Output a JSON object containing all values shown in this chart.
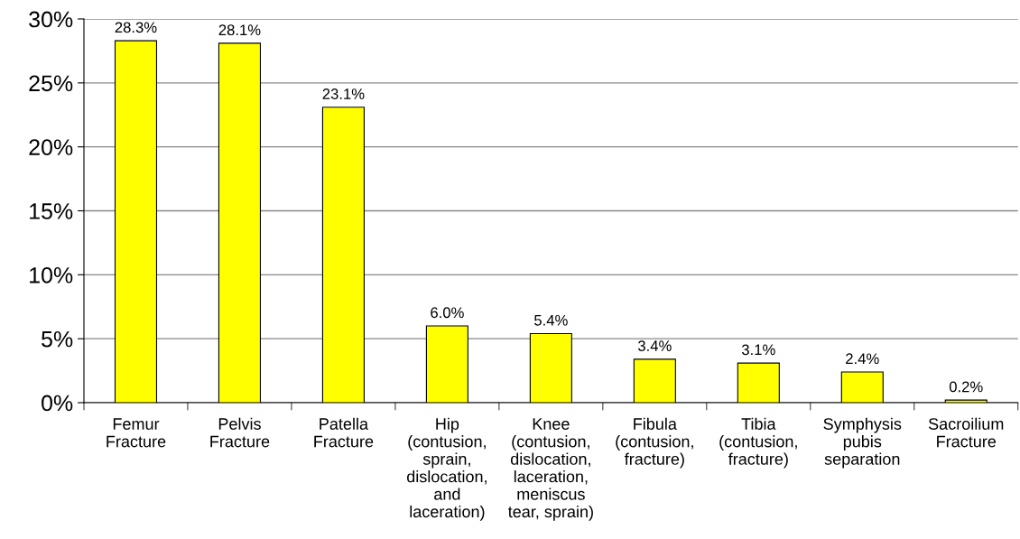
{
  "chart_data": {
    "type": "bar",
    "categories": [
      "Femur\nFracture",
      "Pelvis\nFracture",
      "Patella\nFracture",
      "Hip\n(contusion,\nsprain,\ndislocation,\nand\nlaceration)",
      "Knee\n(contusion,\ndislocation,\nlaceration,\nmeniscus\ntear, sprain)",
      "Fibula\n(contusion,\nfracture)",
      "Tibia\n(contusion,\nfracture)",
      "Symphysis\npubis\nseparation",
      "Sacroilium\nFracture"
    ],
    "values": [
      28.3,
      28.1,
      23.1,
      6.0,
      5.4,
      3.4,
      3.1,
      2.4,
      0.2
    ],
    "value_labels": [
      "28.3%",
      "28.1%",
      "23.1%",
      "6.0%",
      "5.4%",
      "3.4%",
      "3.1%",
      "2.4%",
      "0.2%"
    ],
    "color": "#ffff00",
    "ylim": [
      0,
      30
    ],
    "yticks": [
      {
        "value": 0,
        "label": "0%"
      },
      {
        "value": 5,
        "label": "5%"
      },
      {
        "value": 10,
        "label": "10%"
      },
      {
        "value": 15,
        "label": "15%"
      },
      {
        "value": 20,
        "label": "20%"
      },
      {
        "value": 25,
        "label": "25%"
      },
      {
        "value": 30,
        "label": "30%"
      }
    ],
    "grid": "y",
    "legend": false
  }
}
